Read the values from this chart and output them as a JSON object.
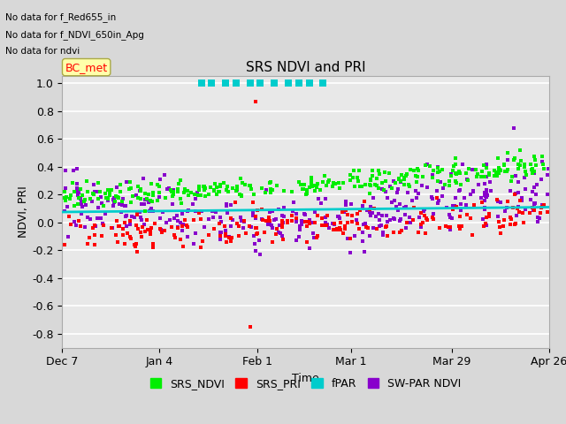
{
  "title": "SRS NDVI and PRI",
  "xlabel": "Time",
  "ylabel": "NDVI, PRI",
  "ylim": [
    -0.9,
    1.05
  ],
  "xlim": [
    0,
    140
  ],
  "annotations": [
    "No data for f_Red655_in",
    "No data for f_NDVI_650in_Apg",
    "No data for ndvi"
  ],
  "annotation_box": "BC_met",
  "x_ticks": [
    0,
    28,
    56,
    83,
    112,
    140
  ],
  "x_tick_labels": [
    "Dec 7",
    "Jan 4",
    "Feb 1",
    "Mar 1",
    "Mar 29",
    "Apr 26"
  ],
  "y_ticks": [
    -0.8,
    -0.6,
    -0.4,
    -0.2,
    0.0,
    0.2,
    0.4,
    0.6,
    0.8,
    1.0
  ],
  "legend_items": [
    "SRS_NDVI",
    "SRS_PRI",
    "fPAR",
    "SW-PAR NDVI"
  ],
  "legend_colors": [
    "#00ff00",
    "#ff0000",
    "#00ffff",
    "#8800cc"
  ],
  "background_color": "#d8d8d8",
  "plot_bg": "#e8e8e8",
  "grid_color": "#ffffff",
  "srs_ndvi_color": "#00ee00",
  "srs_pri_color": "#ff0000",
  "fpar_color": "#00cccc",
  "swpar_color": "#8800cc"
}
